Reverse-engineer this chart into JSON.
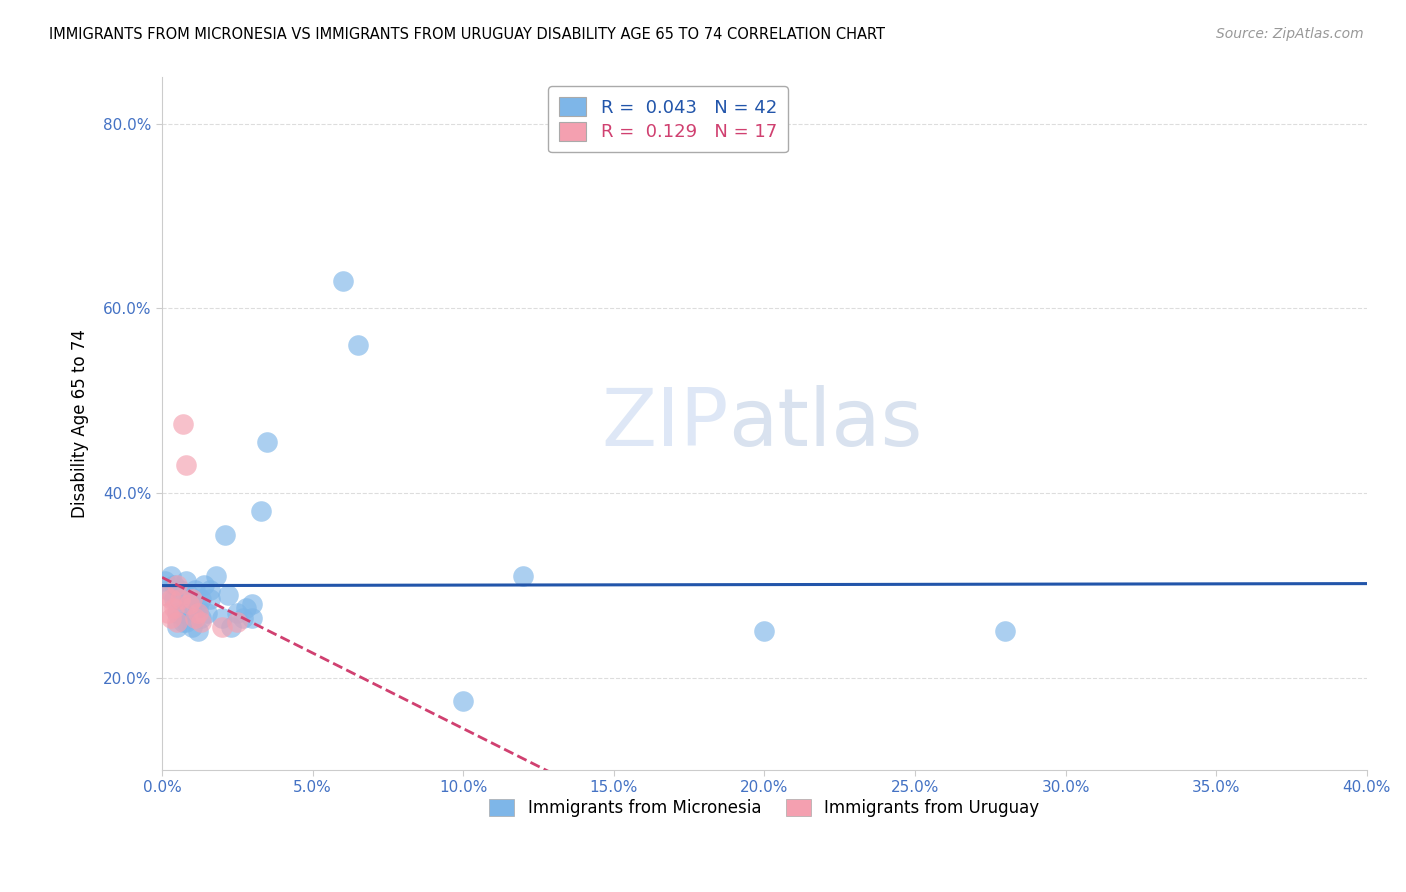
{
  "title": "IMMIGRANTS FROM MICRONESIA VS IMMIGRANTS FROM URUGUAY DISABILITY AGE 65 TO 74 CORRELATION CHART",
  "source": "Source: ZipAtlas.com",
  "xlabel": "",
  "ylabel": "Disability Age 65 to 74",
  "xlim": [
    0.0,
    0.4
  ],
  "ylim": [
    0.1,
    0.85
  ],
  "xticks": [
    0.0,
    0.05,
    0.1,
    0.15,
    0.2,
    0.25,
    0.3,
    0.35,
    0.4
  ],
  "yticks": [
    0.2,
    0.4,
    0.6,
    0.8
  ],
  "micronesia_color": "#7EB6E8",
  "uruguay_color": "#F4A0B0",
  "micronesia_line_color": "#2255AA",
  "uruguay_line_color": "#D04070",
  "R_micronesia": 0.043,
  "N_micronesia": 42,
  "R_uruguay": 0.129,
  "N_uruguay": 17,
  "micronesia_x": [
    0.001,
    0.002,
    0.003,
    0.004,
    0.004,
    0.005,
    0.005,
    0.006,
    0.007,
    0.007,
    0.008,
    0.008,
    0.009,
    0.01,
    0.01,
    0.011,
    0.012,
    0.012,
    0.013,
    0.013,
    0.014,
    0.015,
    0.016,
    0.016,
    0.018,
    0.02,
    0.021,
    0.022,
    0.023,
    0.025,
    0.027,
    0.028,
    0.03,
    0.03,
    0.033,
    0.035,
    0.06,
    0.065,
    0.1,
    0.12,
    0.2,
    0.28
  ],
  "micronesia_y": [
    0.305,
    0.295,
    0.31,
    0.3,
    0.285,
    0.27,
    0.255,
    0.295,
    0.27,
    0.26,
    0.305,
    0.26,
    0.29,
    0.255,
    0.28,
    0.295,
    0.25,
    0.275,
    0.285,
    0.265,
    0.3,
    0.27,
    0.295,
    0.285,
    0.31,
    0.265,
    0.355,
    0.29,
    0.255,
    0.27,
    0.265,
    0.275,
    0.265,
    0.28,
    0.38,
    0.455,
    0.63,
    0.56,
    0.175,
    0.31,
    0.25,
    0.25
  ],
  "uruguay_x": [
    0.001,
    0.002,
    0.003,
    0.003,
    0.004,
    0.005,
    0.005,
    0.006,
    0.007,
    0.008,
    0.009,
    0.01,
    0.011,
    0.012,
    0.013,
    0.02,
    0.025
  ],
  "uruguay_y": [
    0.29,
    0.27,
    0.265,
    0.285,
    0.275,
    0.26,
    0.3,
    0.285,
    0.475,
    0.43,
    0.28,
    0.285,
    0.265,
    0.27,
    0.26,
    0.255,
    0.26
  ],
  "watermark_zip": "ZIP",
  "watermark_atlas": "atlas",
  "background_color": "#ffffff",
  "grid_color": "#dddddd"
}
